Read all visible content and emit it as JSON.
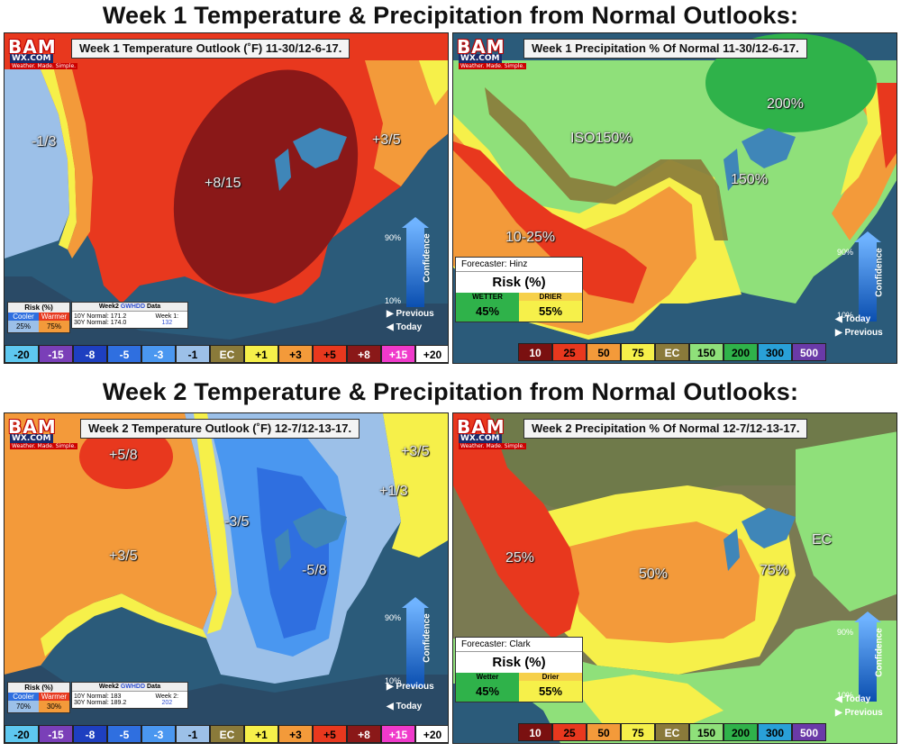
{
  "headings": {
    "week1": "Week 1 Temperature & Precipitation from Normal Outlooks:",
    "week2": "Week 2 Temperature & Precipitation from Normal Outlooks:"
  },
  "logo": {
    "bam": "BAM",
    "wx": "WX.COM",
    "tag": "Weather. Made. Simple."
  },
  "panels": {
    "w1_temp": {
      "title": "Week 1 Temperature Outlook (˚F) 11-30/12-6-17.",
      "labels": [
        "-1/3",
        "+8/15",
        "+3/5"
      ],
      "risk": {
        "header": "Risk (%)",
        "cooler": "Cooler",
        "warmer": "Warmer",
        "cooler_val": "25%",
        "warmer_val": "75%"
      },
      "gwhdd": {
        "header_pre": "Week2 ",
        "header_brand": "GWHDD",
        "header_post": " Data",
        "ten": "10Y Normal: 171.2",
        "thirty": "30Y Normal: 174.0",
        "wk_label": "Week 1:",
        "wk_val": "132"
      },
      "conf": {
        "word": "Confidence",
        "hi": "90%",
        "lo": "10%"
      },
      "previous": "Previous",
      "today": "Today"
    },
    "w1_precip": {
      "title": "Week 1 Precipitation % Of Normal 11-30/12-6-17.",
      "labels": [
        "200%",
        "ISO150%",
        "150%",
        "10-25%"
      ],
      "forecaster": "Forecaster: Hinz",
      "risk": "Risk (%)",
      "wetter": "WETTER",
      "drier": "DRIER",
      "wetter_val": "45%",
      "drier_val": "55%",
      "conf": {
        "word": "Confidence",
        "hi": "90%",
        "lo": "10%"
      },
      "previous": "Previous",
      "today": "Today"
    },
    "w2_temp": {
      "title": "Week 2 Temperature Outlook (˚F) 12-7/12-13-17.",
      "labels": [
        "+5/8",
        "+3/5",
        "+1/3",
        "-3/5",
        "+3/5",
        "-5/8"
      ],
      "risk": {
        "header": "Risk (%)",
        "cooler": "Cooler",
        "warmer": "Warmer",
        "cooler_val": "70%",
        "warmer_val": "30%"
      },
      "gwhdd": {
        "header_pre": "Week2 ",
        "header_brand": "GWHDD",
        "header_post": " Data",
        "ten": "10Y Normal: 183",
        "thirty": "30Y Normal: 189.2",
        "wk_label": "Week 2:",
        "wk_val": "202"
      },
      "conf": {
        "word": "Confidence",
        "hi": "90%",
        "lo": "10%"
      },
      "previous": "Previous",
      "today": "Today"
    },
    "w2_precip": {
      "title": "Week 2 Precipitation % Of Normal 12-7/12-13-17.",
      "labels": [
        "EC",
        "25%",
        "50%",
        "75%"
      ],
      "forecaster": "Forecaster: Clark",
      "risk": "Risk (%)",
      "wetter": "Wetter",
      "drier": "Drier",
      "wetter_val": "45%",
      "drier_val": "55%",
      "conf": {
        "word": "Confidence",
        "hi": "90%",
        "lo": "10%"
      },
      "previous": "Previous",
      "today": "Today"
    }
  },
  "temp_scale": [
    {
      "label": "-20",
      "bg": "#5ec8f0",
      "fg": "#000"
    },
    {
      "label": "-15",
      "bg": "#7a3fb8",
      "fg": "#fff"
    },
    {
      "label": "-8",
      "bg": "#1e3fc0",
      "fg": "#fff"
    },
    {
      "label": "-5",
      "bg": "#2f6fe0",
      "fg": "#fff"
    },
    {
      "label": "-3",
      "bg": "#4a97f0",
      "fg": "#fff"
    },
    {
      "label": "-1",
      "bg": "#9cc0e8",
      "fg": "#000"
    },
    {
      "label": "EC",
      "bg": "#8a7a3a",
      "fg": "#fff"
    },
    {
      "label": "+1",
      "bg": "#f6f04a",
      "fg": "#000"
    },
    {
      "label": "+3",
      "bg": "#f39a3a",
      "fg": "#000"
    },
    {
      "label": "+5",
      "bg": "#e8381e",
      "fg": "#000"
    },
    {
      "label": "+8",
      "bg": "#8a1818",
      "fg": "#fff"
    },
    {
      "label": "+15",
      "bg": "#f03acb",
      "fg": "#fff"
    },
    {
      "label": "+20",
      "bg": "#ffffff",
      "fg": "#000"
    }
  ],
  "precip_scale": [
    {
      "label": "10",
      "bg": "#7a1010",
      "fg": "#fff"
    },
    {
      "label": "25",
      "bg": "#e8381e",
      "fg": "#000"
    },
    {
      "label": "50",
      "bg": "#f39a3a",
      "fg": "#000"
    },
    {
      "label": "75",
      "bg": "#f6f04a",
      "fg": "#000"
    },
    {
      "label": "EC",
      "bg": "#8a7a3a",
      "fg": "#fff"
    },
    {
      "label": "150",
      "bg": "#8fe07a",
      "fg": "#000"
    },
    {
      "label": "200",
      "bg": "#2fb24a",
      "fg": "#000"
    },
    {
      "label": "300",
      "bg": "#29a0d8",
      "fg": "#000"
    },
    {
      "label": "500",
      "bg": "#6a3aa8",
      "fg": "#fff"
    }
  ]
}
